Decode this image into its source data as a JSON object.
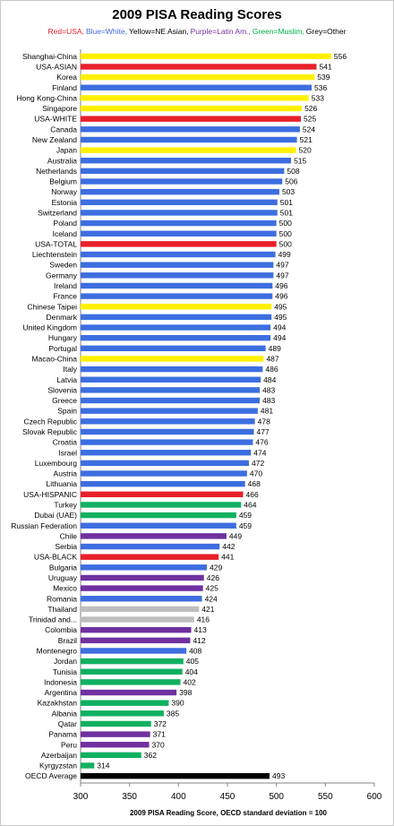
{
  "chart_data": {
    "type": "bar",
    "orientation": "horizontal",
    "title": "2009 PISA Reading Scores",
    "legend": [
      {
        "text": "Red=USA,",
        "color": "#e8202a"
      },
      {
        "text": "Blue=White,",
        "color": "#3d6ee0"
      },
      {
        "text": "Yellow=NE Asian,",
        "color": "#000000"
      },
      {
        "text": "Purple=Latin Am.,",
        "color": "#7030a0"
      },
      {
        "text": "Green=Muslim,",
        "color": "#00b050"
      },
      {
        "text": "Grey=Other",
        "color": "#000000"
      }
    ],
    "xlabel": "2009 PISA Reading Score, OECD standard deviation = 100",
    "xlim": [
      300,
      600
    ],
    "xticks": [
      300,
      350,
      400,
      450,
      500,
      550,
      600
    ],
    "colors": {
      "Y": "#fff000",
      "R": "#e8202a",
      "B": "#3d6ee0",
      "G": "#10b060",
      "P": "#7030a0",
      "S": "#bfbfbf",
      "K": "#000000"
    },
    "bars": [
      {
        "name": "Shanghai-China",
        "value": 556,
        "group": "Y"
      },
      {
        "name": "USA-ASIAN",
        "value": 541,
        "group": "R"
      },
      {
        "name": "Korea",
        "value": 539,
        "group": "Y"
      },
      {
        "name": "Finland",
        "value": 536,
        "group": "B"
      },
      {
        "name": "Hong Kong-China",
        "value": 533,
        "group": "Y"
      },
      {
        "name": "Singapore",
        "value": 526,
        "group": "Y"
      },
      {
        "name": "USA-WHITE",
        "value": 525,
        "group": "R"
      },
      {
        "name": "Canada",
        "value": 524,
        "group": "B"
      },
      {
        "name": "New Zealand",
        "value": 521,
        "group": "B"
      },
      {
        "name": "Japan",
        "value": 520,
        "group": "Y"
      },
      {
        "name": "Australia",
        "value": 515,
        "group": "B"
      },
      {
        "name": "Netherlands",
        "value": 508,
        "group": "B"
      },
      {
        "name": "Belgium",
        "value": 506,
        "group": "B"
      },
      {
        "name": "Norway",
        "value": 503,
        "group": "B"
      },
      {
        "name": "Estonia",
        "value": 501,
        "group": "B"
      },
      {
        "name": "Switzerland",
        "value": 501,
        "group": "B"
      },
      {
        "name": "Poland",
        "value": 500,
        "group": "B"
      },
      {
        "name": "Iceland",
        "value": 500,
        "group": "B"
      },
      {
        "name": "USA-TOTAL",
        "value": 500,
        "group": "R"
      },
      {
        "name": "Liechtenstein",
        "value": 499,
        "group": "B"
      },
      {
        "name": "Sweden",
        "value": 497,
        "group": "B"
      },
      {
        "name": "Germany",
        "value": 497,
        "group": "B"
      },
      {
        "name": "Ireland",
        "value": 496,
        "group": "B"
      },
      {
        "name": "France",
        "value": 496,
        "group": "B"
      },
      {
        "name": "Chinese Taipei",
        "value": 495,
        "group": "Y"
      },
      {
        "name": "Denmark",
        "value": 495,
        "group": "B"
      },
      {
        "name": "United Kingdom",
        "value": 494,
        "group": "B"
      },
      {
        "name": "Hungary",
        "value": 494,
        "group": "B"
      },
      {
        "name": "Portugal",
        "value": 489,
        "group": "B"
      },
      {
        "name": "Macao-China",
        "value": 487,
        "group": "Y"
      },
      {
        "name": "Italy",
        "value": 486,
        "group": "B"
      },
      {
        "name": "Latvia",
        "value": 484,
        "group": "B"
      },
      {
        "name": "Slovenia",
        "value": 483,
        "group": "B"
      },
      {
        "name": "Greece",
        "value": 483,
        "group": "B"
      },
      {
        "name": "Spain",
        "value": 481,
        "group": "B"
      },
      {
        "name": "Czech Republic",
        "value": 478,
        "group": "B"
      },
      {
        "name": "Slovak Republic",
        "value": 477,
        "group": "B"
      },
      {
        "name": "Croatia",
        "value": 476,
        "group": "B"
      },
      {
        "name": "Israel",
        "value": 474,
        "group": "B"
      },
      {
        "name": "Luxembourg",
        "value": 472,
        "group": "B"
      },
      {
        "name": "Austria",
        "value": 470,
        "group": "B"
      },
      {
        "name": "Lithuania",
        "value": 468,
        "group": "B"
      },
      {
        "name": "USA-HISPANIC",
        "value": 466,
        "group": "R"
      },
      {
        "name": "Turkey",
        "value": 464,
        "group": "G"
      },
      {
        "name": "Dubai (UAE)",
        "value": 459,
        "group": "G"
      },
      {
        "name": "Russian Federation",
        "value": 459,
        "group": "B"
      },
      {
        "name": "Chile",
        "value": 449,
        "group": "P"
      },
      {
        "name": "Serbia",
        "value": 442,
        "group": "B"
      },
      {
        "name": "USA-BLACK",
        "value": 441,
        "group": "R"
      },
      {
        "name": "Bulgaria",
        "value": 429,
        "group": "B"
      },
      {
        "name": "Uruguay",
        "value": 426,
        "group": "P"
      },
      {
        "name": "Mexico",
        "value": 425,
        "group": "P"
      },
      {
        "name": "Romania",
        "value": 424,
        "group": "B"
      },
      {
        "name": "Thailand",
        "value": 421,
        "group": "S"
      },
      {
        "name": "Trinidad and...",
        "value": 416,
        "group": "S"
      },
      {
        "name": "Colombia",
        "value": 413,
        "group": "P"
      },
      {
        "name": "Brazil",
        "value": 412,
        "group": "P"
      },
      {
        "name": "Montenegro",
        "value": 408,
        "group": "B"
      },
      {
        "name": "Jordan",
        "value": 405,
        "group": "G"
      },
      {
        "name": "Tunisia",
        "value": 404,
        "group": "G"
      },
      {
        "name": "Indonesia",
        "value": 402,
        "group": "G"
      },
      {
        "name": "Argentina",
        "value": 398,
        "group": "P"
      },
      {
        "name": "Kazakhstan",
        "value": 390,
        "group": "G"
      },
      {
        "name": "Albania",
        "value": 385,
        "group": "G"
      },
      {
        "name": "Qatar",
        "value": 372,
        "group": "G"
      },
      {
        "name": "Panama",
        "value": 371,
        "group": "P"
      },
      {
        "name": "Peru",
        "value": 370,
        "group": "P"
      },
      {
        "name": "Azerbaijan",
        "value": 362,
        "group": "G"
      },
      {
        "name": "Kyrgyzstan",
        "value": 314,
        "group": "G"
      },
      {
        "name": "OECD Average",
        "value": 493,
        "group": "K"
      }
    ]
  }
}
